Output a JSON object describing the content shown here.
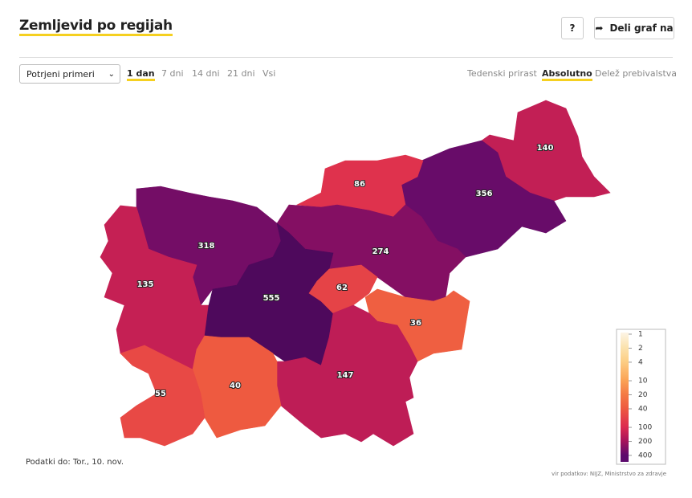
{
  "header": {
    "title": "Zemljevid po regijah",
    "help_button": "?",
    "share_button": "Deli graf na"
  },
  "controls": {
    "measure": "Potrjeni primeri",
    "periods": [
      "1 dan",
      "7 dni",
      "14 dni",
      "21 dni",
      "Vsi"
    ],
    "modes": [
      "Tedenski prirast",
      "Absolutno",
      "Delež prebivalstva"
    ]
  },
  "map": {
    "type": "choropleth",
    "log_scale": true,
    "regions": [
      {
        "value": 140
      },
      {
        "value": 356
      },
      {
        "value": 86
      },
      {
        "value": 318
      },
      {
        "value": 274
      },
      {
        "value": 135
      },
      {
        "value": 555
      },
      {
        "value": 62
      },
      {
        "value": 36
      },
      {
        "value": 147
      },
      {
        "value": 40
      },
      {
        "value": 55
      }
    ],
    "legend_ticks": [
      1,
      2,
      4,
      10,
      20,
      40,
      100,
      200,
      400
    ]
  },
  "footer": {
    "data_date": "Podatki do: Tor., 10. nov.",
    "source": "vir podatkov: NIJZ, Ministrstvo za zdravje"
  }
}
